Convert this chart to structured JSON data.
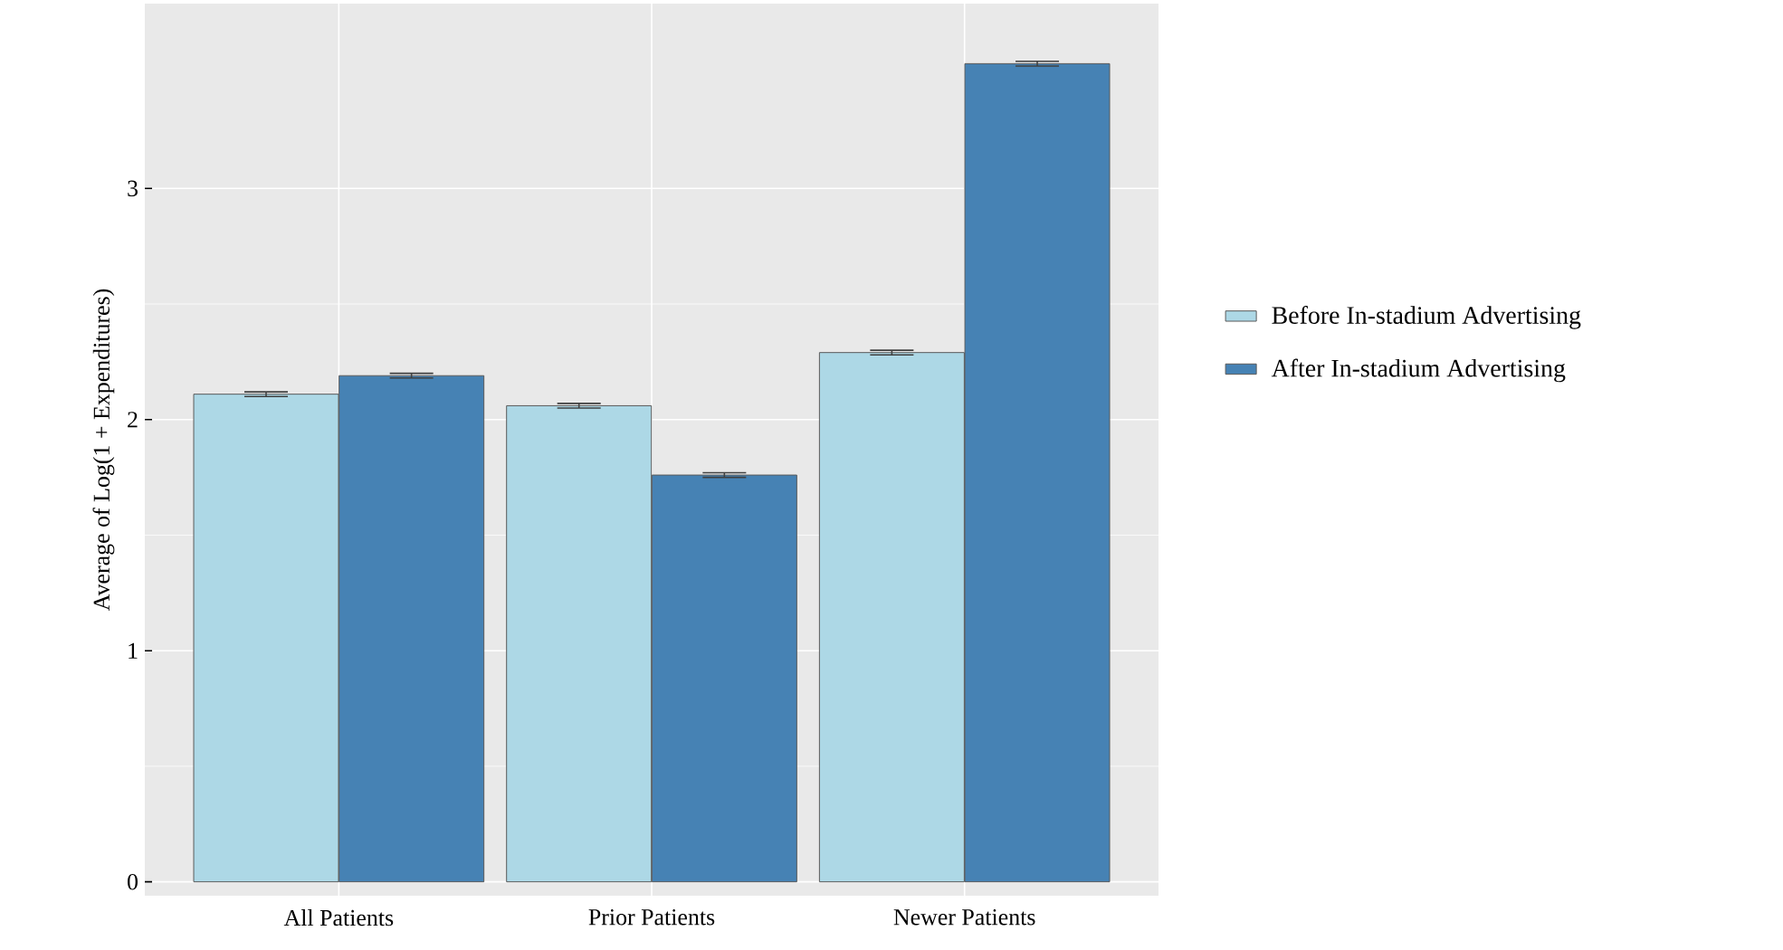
{
  "chart_data": {
    "type": "bar",
    "ylabel": "Average of Log(1 + Expenditures)",
    "categories": [
      "All Patients",
      "Prior Patients",
      "Newer Patients"
    ],
    "series": [
      {
        "name": "Before In-stadium Advertising",
        "color": "#add8e6",
        "values": [
          2.11,
          2.06,
          2.29
        ],
        "errors": [
          0.01,
          0.01,
          0.01
        ]
      },
      {
        "name": "After In-stadium Advertising",
        "color": "#4682b4",
        "values": [
          2.19,
          1.76,
          3.54
        ],
        "errors": [
          0.01,
          0.01,
          0.01
        ]
      }
    ],
    "ylim": [
      -0.06,
      3.8
    ],
    "yticks": [
      0,
      1,
      2,
      3
    ],
    "grid": true,
    "legend": "right"
  }
}
